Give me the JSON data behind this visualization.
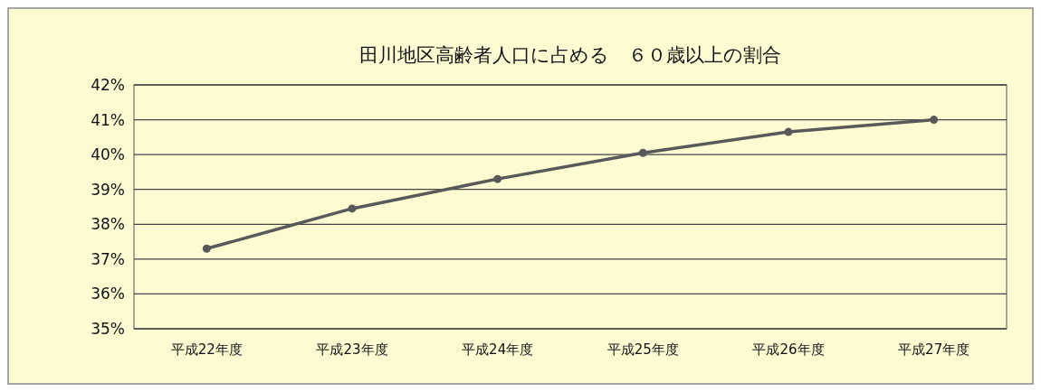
{
  "chart_data": {
    "type": "line",
    "title": "田川地区高齢者人口に占める　６０歳以上の割合",
    "categories": [
      "平成22年度",
      "平成23年度",
      "平成24年度",
      "平成25年度",
      "平成26年度",
      "平成27年度"
    ],
    "series": [
      {
        "color": "#595959",
        "values": [
          37.3,
          38.45,
          39.3,
          40.05,
          40.65,
          41.0
        ]
      }
    ],
    "ylim": [
      35,
      42
    ],
    "yticks": [
      {
        "value": 35,
        "label": "35%"
      },
      {
        "value": 36,
        "label": "36%"
      },
      {
        "value": 37,
        "label": "37%"
      },
      {
        "value": 38,
        "label": "38%"
      },
      {
        "value": 39,
        "label": "39%"
      },
      {
        "value": 40,
        "label": "40%"
      },
      {
        "value": 41,
        "label": "41%"
      },
      {
        "value": 42,
        "label": "42%"
      }
    ],
    "grid": "y",
    "marker": "circle",
    "line_style": "solid"
  }
}
